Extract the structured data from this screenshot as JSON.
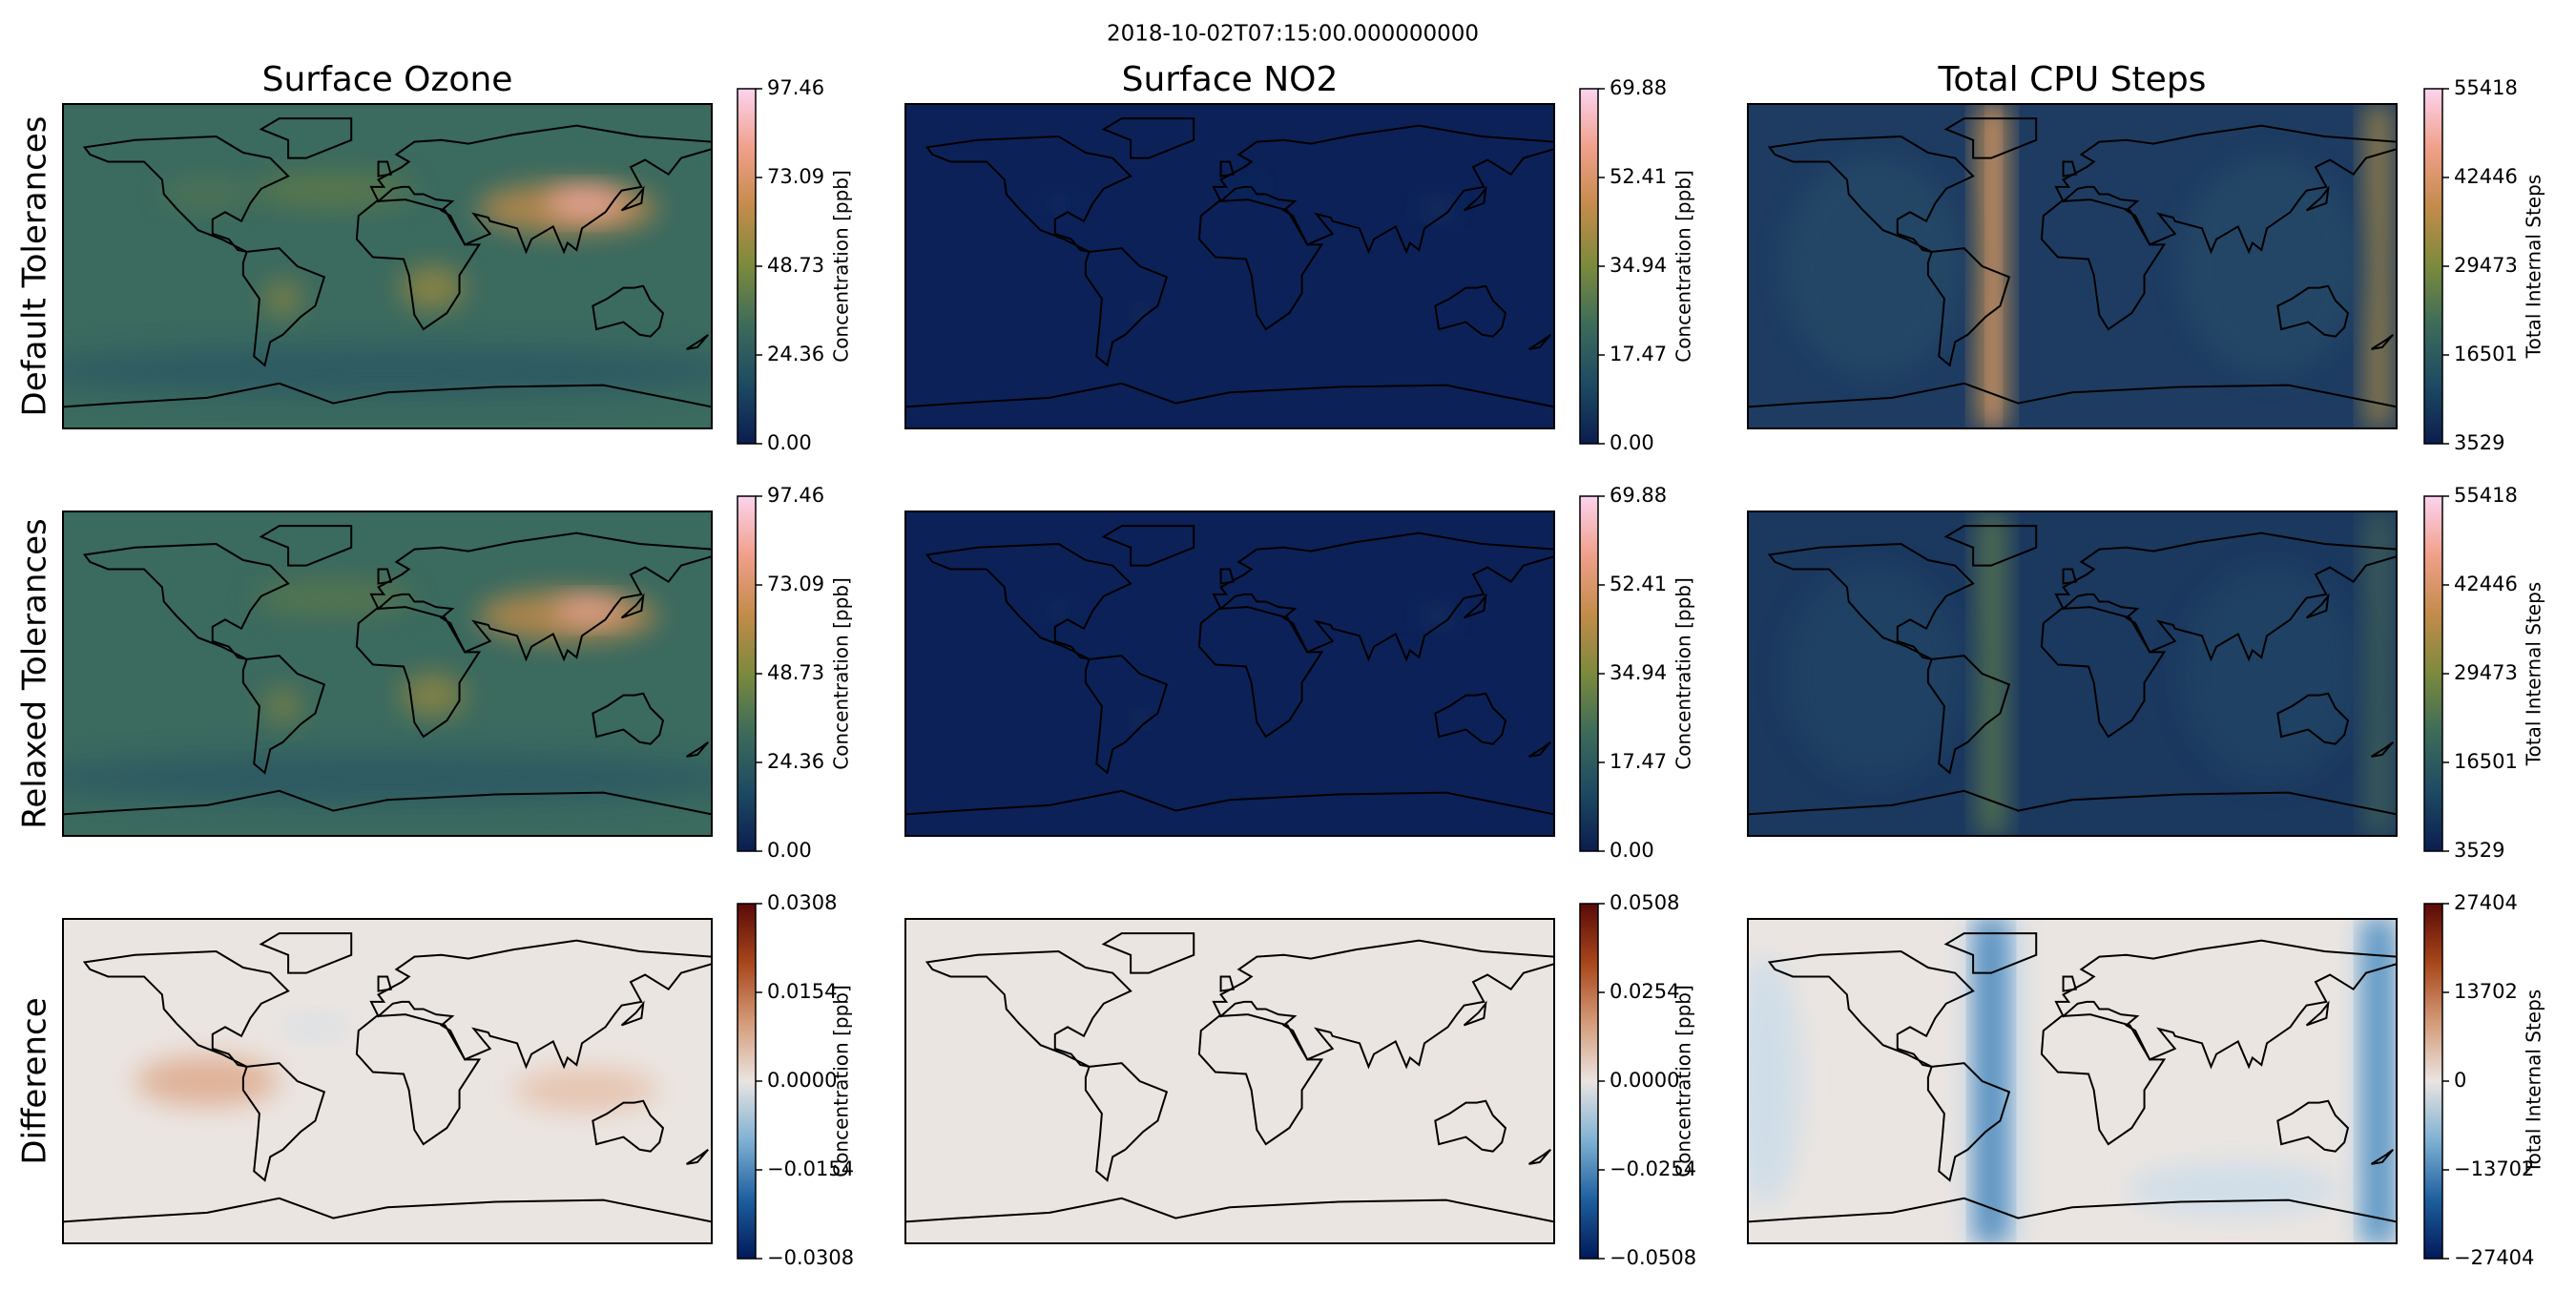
{
  "suptitle": "2018-10-02T07:15:00.000000000",
  "chart_data": [
    {
      "type": "heatmap",
      "title": "Surface Ozone",
      "ylabel": "Default Tolerances",
      "zlabel": "Concentration [ppb]",
      "zlim": [
        0,
        97.46
      ],
      "zticks": [
        {
          "value": 0,
          "label": "0.00"
        },
        24.36,
        48.73,
        73.09,
        97.46
      ],
      "colors": [
        "#0b1d4f",
        "#1d4a62",
        "#3d6b5a",
        "#7b8a3d",
        "#c38b4a",
        "#f0a08a",
        "#fcd3ef"
      ]
    },
    {
      "type": "heatmap",
      "title": "Surface NO2",
      "ylabel": null,
      "zlabel": "Concentration [ppb]",
      "zlim": [
        0,
        69.88
      ],
      "zticks": [
        {
          "value": 0,
          "label": "0.00"
        },
        17.47,
        34.94,
        52.41,
        69.88
      ],
      "colors": [
        "#0b1d4f",
        "#1d4a62",
        "#3d6b5a",
        "#7b8a3d",
        "#c38b4a",
        "#f0a08a",
        "#fcd3ef"
      ]
    },
    {
      "type": "heatmap",
      "title": "Total CPU Steps",
      "ylabel": null,
      "zlabel": "Total Internal Steps",
      "zlim": [
        3529,
        55418
      ],
      "zticks": [
        3529,
        16501,
        29473,
        42446,
        55418
      ],
      "colors": [
        "#0b1d4f",
        "#1d4a62",
        "#3d6b5a",
        "#7b8a3d",
        "#c38b4a",
        "#f0a08a",
        "#fcd3ef"
      ]
    },
    {
      "type": "heatmap",
      "title": null,
      "ylabel": "Relaxed Tolerances",
      "zlabel": "Concentration [ppb]",
      "zlim": [
        0,
        97.46
      ],
      "zticks": [
        {
          "value": 0,
          "label": "0.00"
        },
        24.36,
        48.73,
        73.09,
        97.46
      ],
      "colors": [
        "#0b1d4f",
        "#1d4a62",
        "#3d6b5a",
        "#7b8a3d",
        "#c38b4a",
        "#f0a08a",
        "#fcd3ef"
      ]
    },
    {
      "type": "heatmap",
      "title": null,
      "ylabel": null,
      "zlabel": "Concentration [ppb]",
      "zlim": [
        0,
        69.88
      ],
      "zticks": [
        {
          "value": 0,
          "label": "0.00"
        },
        17.47,
        34.94,
        52.41,
        69.88
      ],
      "colors": [
        "#0b1d4f",
        "#1d4a62",
        "#3d6b5a",
        "#7b8a3d",
        "#c38b4a",
        "#f0a08a",
        "#fcd3ef"
      ]
    },
    {
      "type": "heatmap",
      "title": null,
      "ylabel": null,
      "zlabel": "Total Internal Steps",
      "zlim": [
        3529,
        55418
      ],
      "zticks": [
        3529,
        16501,
        29473,
        42446,
        55418
      ],
      "colors": [
        "#0b1d4f",
        "#1d4a62",
        "#3d6b5a",
        "#7b8a3d",
        "#c38b4a",
        "#f0a08a",
        "#fcd3ef"
      ]
    },
    {
      "type": "heatmap",
      "title": null,
      "ylabel": "Difference",
      "zlabel": "Concentration [ppb]",
      "zlim": [
        -0.0308,
        0.0308
      ],
      "zticks": [
        {
          "value": -0.0308,
          "label": "−0.0308"
        },
        {
          "value": -0.0154,
          "label": "−0.0154"
        },
        {
          "value": 0,
          "label": "0.0000"
        },
        0.0154,
        0.0308
      ],
      "colors": [
        "#011959",
        "#1e5f9e",
        "#7fb1d3",
        "#eae4e0",
        "#d49a78",
        "#a8461b",
        "#5a0a08"
      ]
    },
    {
      "type": "heatmap",
      "title": null,
      "ylabel": null,
      "zlabel": "Concentration [ppb]",
      "zlim": [
        -0.0508,
        0.0508
      ],
      "zticks": [
        {
          "value": -0.0508,
          "label": "−0.0508"
        },
        {
          "value": -0.0254,
          "label": "−0.0254"
        },
        {
          "value": 0,
          "label": "0.0000"
        },
        0.0254,
        0.0508
      ],
      "colors": [
        "#011959",
        "#1e5f9e",
        "#7fb1d3",
        "#eae4e0",
        "#d49a78",
        "#a8461b",
        "#5a0a08"
      ]
    },
    {
      "type": "heatmap",
      "title": null,
      "ylabel": null,
      "zlabel": "Total Internal Steps",
      "zlim": [
        -27404,
        27404
      ],
      "zticks": [
        {
          "value": -27404,
          "label": "−27404"
        },
        {
          "value": -13702,
          "label": "−13702"
        },
        0,
        13702,
        27404
      ],
      "colors": [
        "#011959",
        "#1e5f9e",
        "#7fb1d3",
        "#eae4e0",
        "#d49a78",
        "#a8461b",
        "#5a0a08"
      ]
    }
  ]
}
